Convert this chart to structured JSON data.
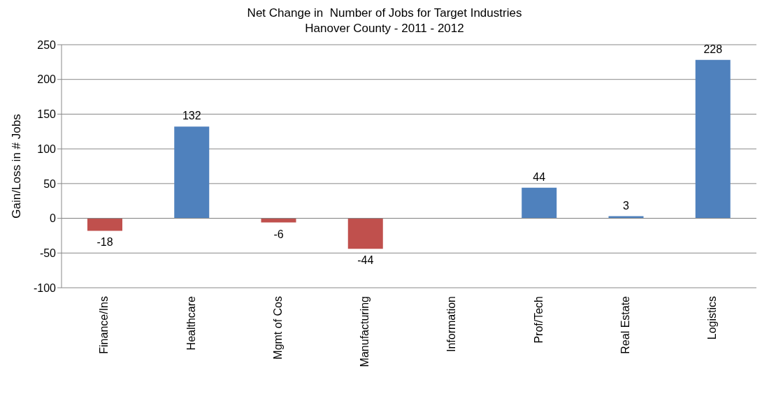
{
  "chart_data": {
    "type": "bar",
    "title": "Net Change in  Number of Jobs for Target Industries",
    "subtitle": "Hanover County - 2011 - 2012",
    "ylabel": "Gain/Loss in # Jobs",
    "categories": [
      "Finance/Ins",
      "Healthcare",
      "Mgmt of Cos",
      "Manufacturing",
      "Information",
      "Prof/Tech",
      "Real Estate",
      "Logistics"
    ],
    "values": [
      -18,
      132,
      -6,
      -44,
      0,
      44,
      3,
      228
    ],
    "colors": [
      "#c0504d",
      "#4f81bd",
      "#c0504d",
      "#c0504d",
      "#4f81bd",
      "#4f81bd",
      "#4f81bd",
      "#4f81bd"
    ],
    "value_labels": [
      "-18",
      "132",
      "-6",
      "-44",
      null,
      "44",
      "3",
      "228"
    ],
    "ylim": [
      -100,
      250
    ],
    "yticks": [
      -100,
      -50,
      0,
      50,
      100,
      150,
      200,
      250
    ],
    "grid": "y"
  }
}
